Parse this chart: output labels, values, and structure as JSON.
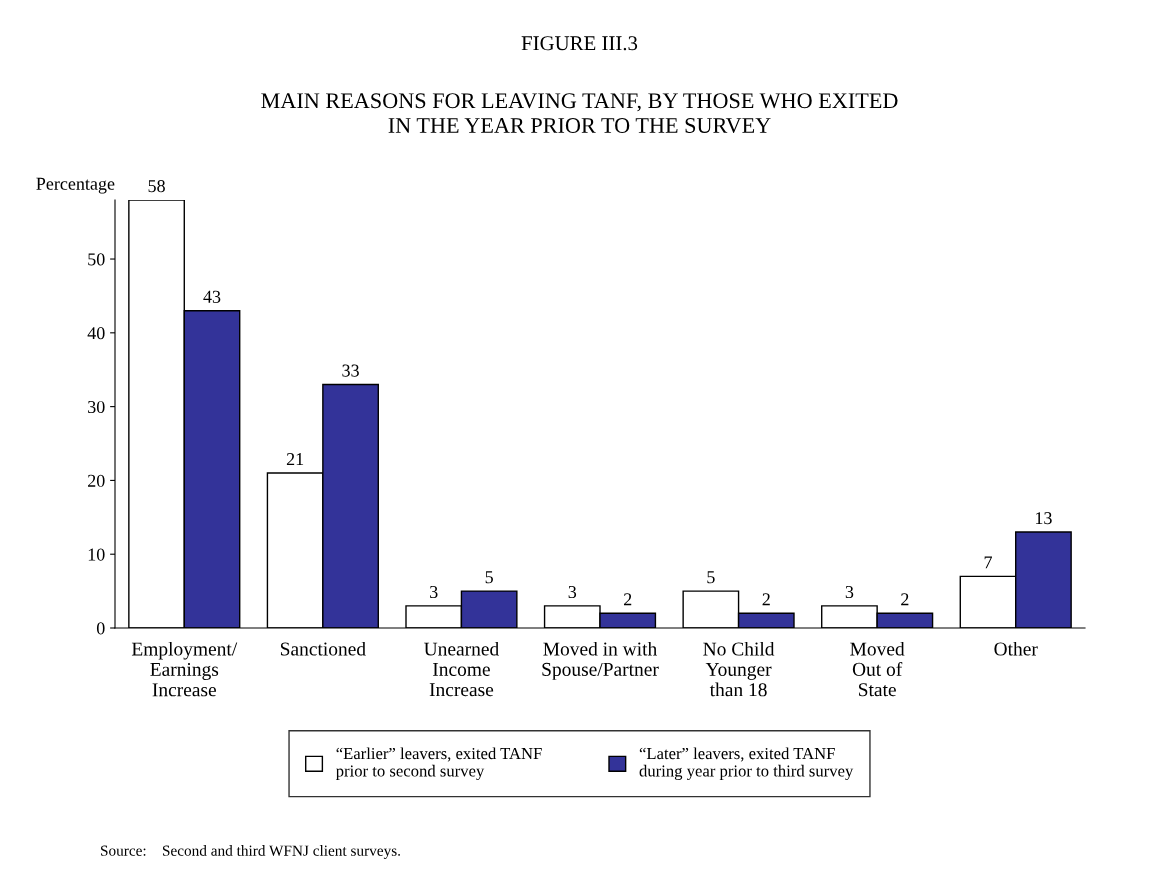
{
  "chart_data": {
    "type": "bar",
    "title": "FIGURE III.3",
    "subtitle": "MAIN REASONS FOR LEAVING TANF, BY THOSE WHO EXITED\nIN THE YEAR PRIOR TO THE SURVEY",
    "ylabel": "Percentage",
    "categories": [
      "Employment/\nEarnings\nIncrease",
      "Sanctioned",
      "Unearned\nIncome\nIncrease",
      "Moved in with\nSpouse/Partner",
      "No Child\nYounger\nthan 18",
      "Moved\nOut of\nState",
      "Other"
    ],
    "series": [
      {
        "name": "“Earlier” leavers, exited TANF\nprior to second survey",
        "color": "#ffffff",
        "values": [
          58,
          21,
          3,
          3,
          5,
          3,
          7
        ]
      },
      {
        "name": "“Later” leavers, exited TANF\nduring year prior to third survey",
        "color": "#333399",
        "values": [
          43,
          33,
          5,
          2,
          2,
          2,
          13
        ]
      }
    ],
    "ylim": [
      0,
      58
    ],
    "yticks": [
      0,
      10,
      20,
      30,
      40,
      50
    ],
    "data_labels": true,
    "grid": false,
    "legend": "bottom",
    "annotations": [
      "Source:    Second and third WFNJ client surveys."
    ]
  }
}
